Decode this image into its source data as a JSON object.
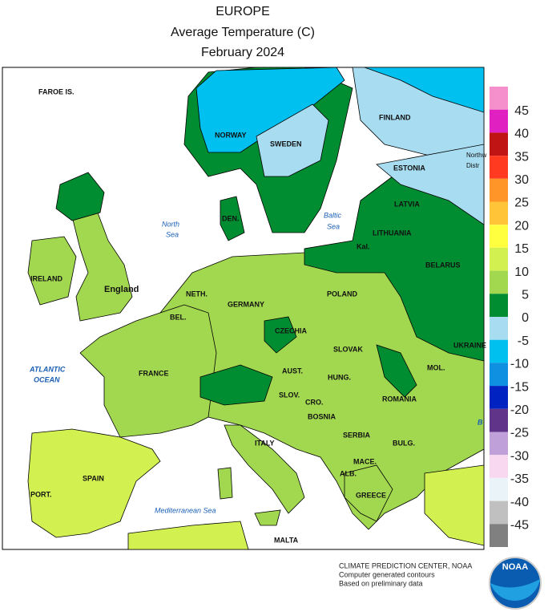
{
  "header": {
    "title": "EUROPE",
    "subtitle": "Average Temperature (C)",
    "period": "February 2024"
  },
  "map_labels": {
    "faroe": "FAROE IS.",
    "norway": "NORWAY",
    "sweden": "SWEDEN",
    "finland": "FINLAND",
    "estonia": "ESTONIA",
    "northw": "Northw",
    "distr": "Distr",
    "latvia": "LATVIA",
    "lithuania": "LITHUANIA",
    "kal": "Kal.",
    "belarus": "BELARUS",
    "den": "DEN.",
    "north_sea_1": "North",
    "north_sea_2": "Sea",
    "baltic_sea_1": "Baltic",
    "baltic_sea_2": "Sea",
    "ireland": "IRELAND",
    "england": "England",
    "neth": "NETH.",
    "germany": "GERMANY",
    "bel": "BEL.",
    "poland": "POLAND",
    "czechia": "CZECHIA",
    "slovak": "SLOVAK",
    "ukraine": "UKRAINE",
    "atlantic_1": "ATLANTIC",
    "atlantic_2": "OCEAN",
    "france": "FRANCE",
    "aust": "AUST.",
    "hung": "HUNG.",
    "mol": "MOL.",
    "slov": "SLOV.",
    "cro": "CRO.",
    "romania": "ROMANIA",
    "bosnia": "BOSNIA",
    "serbia": "SERBIA",
    "bulg": "BULG.",
    "italy": "ITALY",
    "mace": "MACE.",
    "alb": "ALB.",
    "spain": "SPAIN",
    "port": "PORT.",
    "greece": "GREECE",
    "med_sea": "Mediterranean Sea",
    "malta": "MALTA",
    "b": "B"
  },
  "legend": {
    "colors": [
      "#f590cc",
      "#e020c0",
      "#c01414",
      "#ff3a20",
      "#ff9428",
      "#ffc438",
      "#ffff40",
      "#d2f050",
      "#a2d850",
      "#008c30",
      "#a8dcf0",
      "#00c0f0",
      "#1090e0",
      "#0022c0",
      "#603488",
      "#c0a0d8",
      "#f8d8f0",
      "#eaf4f8",
      "#c0c0c0",
      "#808080"
    ],
    "labels": [
      45,
      40,
      35,
      30,
      25,
      20,
      15,
      10,
      5,
      0,
      -5,
      -10,
      -15,
      -20,
      -25,
      -30,
      -35,
      -40,
      -45
    ]
  },
  "credits": {
    "line1": "CLIMATE PREDICTION CENTER, NOAA",
    "line2": "Computer generated contours",
    "line3": "Based on preliminary data",
    "logo": "NOAA"
  }
}
